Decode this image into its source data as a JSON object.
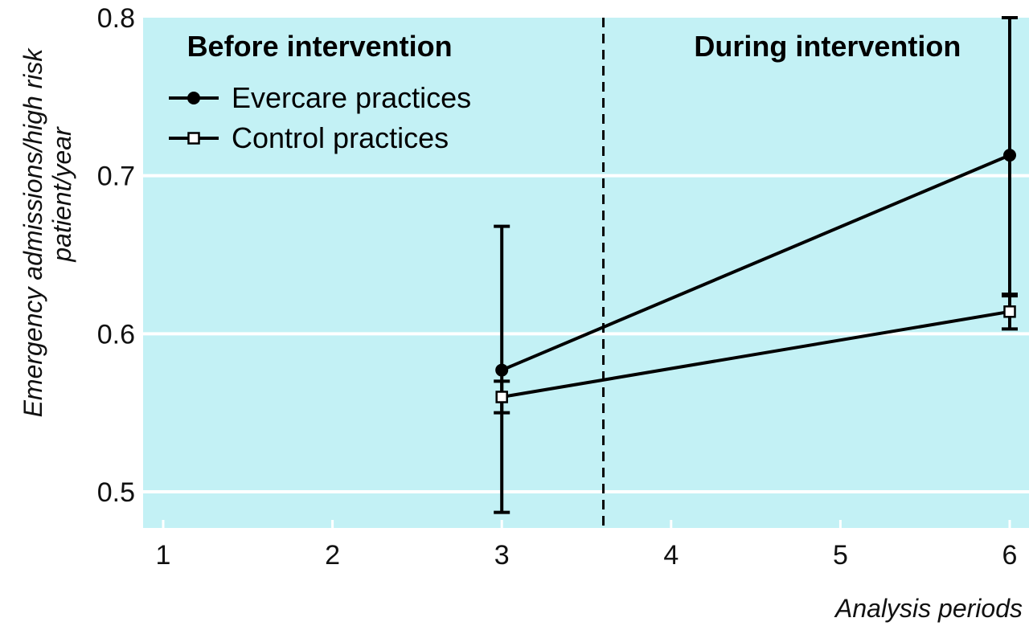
{
  "chart_data": {
    "type": "line",
    "xlabel": "Analysis periods",
    "ylabel_lines": [
      "Emergency admissions/high risk",
      "patient/year"
    ],
    "x_ticks": [
      1,
      2,
      3,
      4,
      5,
      6
    ],
    "y_ticks": [
      "0.5",
      "0.6",
      "0.7",
      "0.8"
    ],
    "xlim": [
      0.98,
      6.1
    ],
    "ylim": [
      0.478,
      0.8
    ],
    "grid": "horizontal",
    "background_color": "#c3f1f5",
    "grid_color": "#ffffff",
    "divider_x": 3.6,
    "regions": [
      {
        "label": "Before intervention",
        "x_center": 2.0
      },
      {
        "label": "During intervention",
        "x_center": 5.0
      }
    ],
    "legend_position": "top-left",
    "series": [
      {
        "name": "Evercare practices",
        "marker": "filled-circle",
        "color": "#000000",
        "points": [
          {
            "x": 3,
            "y": 0.577,
            "err_low": 0.487,
            "err_high": 0.668
          },
          {
            "x": 6,
            "y": 0.713,
            "err_low": 0.625,
            "err_high": 0.8
          }
        ]
      },
      {
        "name": "Control practices",
        "marker": "open-square",
        "color": "#000000",
        "points": [
          {
            "x": 3,
            "y": 0.56,
            "err_low": 0.55,
            "err_high": 0.57
          },
          {
            "x": 6,
            "y": 0.614,
            "err_low": 0.603,
            "err_high": 0.624
          }
        ]
      }
    ]
  }
}
